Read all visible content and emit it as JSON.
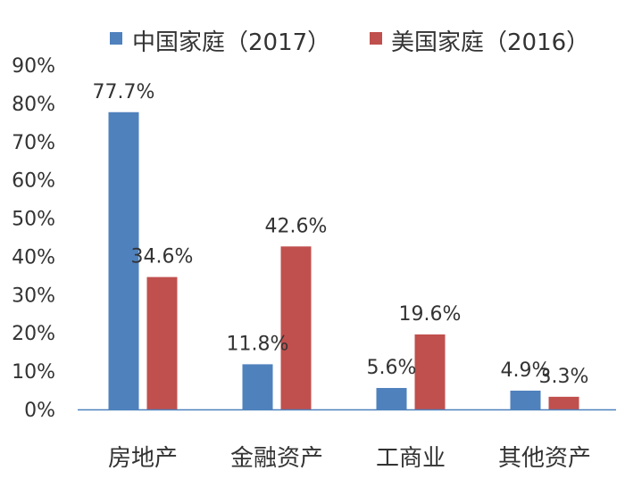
{
  "chart_data": {
    "type": "bar",
    "categories": [
      "房地产",
      "金融资产",
      "工商业",
      "其他资产"
    ],
    "series": [
      {
        "name": "中国家庭（2017）",
        "values": [
          77.7,
          11.8,
          5.6,
          4.9
        ],
        "data_labels": [
          "77.7%",
          "11.8%",
          "5.6%",
          "4.9%"
        ],
        "color": "#4f81bd"
      },
      {
        "name": "美国家庭（2016）",
        "values": [
          34.6,
          42.6,
          19.6,
          3.3
        ],
        "data_labels": [
          "34.6%",
          "42.6%",
          "19.6%",
          "3.3%"
        ],
        "color": "#c0504d"
      }
    ],
    "y_ticks": [
      "0%",
      "10%",
      "20%",
      "30%",
      "40%",
      "50%",
      "60%",
      "70%",
      "80%",
      "90%"
    ],
    "ylim": [
      0,
      90
    ],
    "grid": false,
    "legend_position": "top"
  },
  "colors": {
    "axis": "#4f81bd",
    "text": "#333333"
  }
}
